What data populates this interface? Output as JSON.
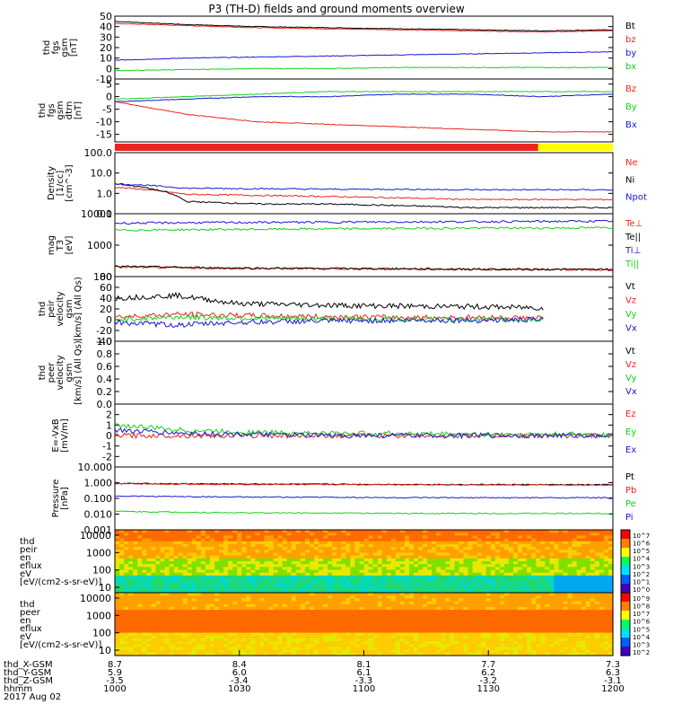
{
  "title": "P3 (TH-D) fields and ground moments overview",
  "colors": {
    "black": "#000000",
    "red": "#e8261e",
    "green": "#16d216",
    "blue": "#1818d8",
    "yellow": "#ffff00"
  },
  "colorbar_labels": {
    "ion": "[eV/(cm2-s-sr-eV)] (All Qs)",
    "electron": "[eV/(cm2-s-sr-eV)]"
  },
  "footer": {
    "rows": [
      {
        "label": "thd_X-GSM",
        "values": [
          "8.7",
          "8.4",
          "8.1",
          "7.7",
          "7.3"
        ]
      },
      {
        "label": "thd_Y-GSM",
        "values": [
          "5.9",
          "6.0",
          "6.1",
          "6.2",
          "6.3"
        ]
      },
      {
        "label": "thd_Z-GSM",
        "values": [
          "-3.5",
          "-3.4",
          "-3.3",
          "-3.2",
          "-3.1"
        ]
      },
      {
        "label": "hhmm",
        "values": [
          "1000",
          "1030",
          "1100",
          "1130",
          "1200"
        ]
      }
    ],
    "date": "2017 Aug 02"
  },
  "chart_data": [
    {
      "id": "fgs-gsm-mag",
      "type": "line",
      "ylabel": [
        "thd",
        "fgs",
        "gsm",
        "[nT]"
      ],
      "ylim": [
        -10,
        50
      ],
      "ticks": [
        "50",
        "40",
        "30",
        "20",
        "10",
        "0",
        "-10"
      ],
      "tick_values": [
        50,
        40,
        30,
        20,
        10,
        0,
        -10
      ],
      "x_time_range": [
        "10:00",
        "12:00"
      ],
      "series": [
        {
          "name": "Bt",
          "color": "black",
          "values": [
            45,
            42,
            40,
            39,
            38,
            37,
            36,
            37
          ]
        },
        {
          "name": "bz",
          "color": "red",
          "values": [
            43,
            41,
            39,
            38,
            37,
            36,
            35,
            36
          ]
        },
        {
          "name": "by",
          "color": "blue",
          "values": [
            8,
            10,
            11,
            12,
            13,
            14,
            15,
            16
          ]
        },
        {
          "name": "bx",
          "color": "green",
          "values": [
            -2,
            -1,
            0,
            0,
            1,
            1,
            1,
            1
          ]
        }
      ]
    },
    {
      "id": "fgs-gsm-detrended",
      "type": "line",
      "ylabel": [
        "thd",
        "fgs",
        "gsm",
        "dtrn",
        "[nT]"
      ],
      "ylim": [
        -18,
        7
      ],
      "ticks": [
        "5",
        "0",
        "-5",
        "-10",
        "-15"
      ],
      "tick_values": [
        5,
        0,
        -5,
        -10,
        -15
      ],
      "series": [
        {
          "name": "Bz",
          "color": "red",
          "values": [
            -2,
            -7,
            -10,
            -11,
            -12,
            -13,
            -14,
            -14
          ]
        },
        {
          "name": "By",
          "color": "green",
          "values": [
            -1,
            0,
            1,
            2,
            2,
            2,
            2,
            2
          ]
        },
        {
          "name": "Bx",
          "color": "blue",
          "values": [
            -2,
            -1,
            0,
            0,
            1,
            1,
            0,
            1
          ]
        }
      ]
    },
    {
      "id": "mode-bar",
      "type": "bar",
      "segments": [
        {
          "color": "red",
          "from": 0.0,
          "to": 0.85
        },
        {
          "color": "yellow",
          "from": 0.85,
          "to": 1.0
        }
      ]
    },
    {
      "id": "density",
      "type": "line",
      "scale": "log",
      "ylabel": [
        "Density",
        "[1/cc]",
        "[cm^-3]"
      ],
      "ylim": [
        0.1,
        100
      ],
      "ticks": [
        "100.0",
        "10.0",
        "1.0",
        "0.1"
      ],
      "tick_values": [
        100,
        10,
        1,
        0.1
      ],
      "series": [
        {
          "name": "Ne",
          "color": "red",
          "values": [
            2,
            0.9,
            0.8,
            0.7,
            0.6,
            0.5,
            0.5,
            0.5
          ]
        },
        {
          "name": "Ni",
          "color": "black",
          "values": [
            3,
            0.4,
            0.3,
            0.3,
            0.25,
            0.2,
            0.2,
            0.2
          ]
        },
        {
          "name": "Npot",
          "color": "blue",
          "values": [
            3,
            1.8,
            1.7,
            1.6,
            1.6,
            1.5,
            1.5,
            1.5
          ]
        }
      ]
    },
    {
      "id": "temperature",
      "type": "line",
      "scale": "log",
      "ylabel": [
        "mag",
        "T3",
        "[eV]"
      ],
      "ylim": [
        100,
        10000
      ],
      "ticks": [
        "10000",
        "1000",
        "100"
      ],
      "tick_values": [
        10000,
        1000,
        100
      ],
      "series": [
        {
          "name": "Te⊥",
          "color": "red",
          "values": [
            200,
            190,
            180,
            180,
            175,
            170,
            170,
            165
          ]
        },
        {
          "name": "Te||",
          "color": "black",
          "values": [
            210,
            195,
            185,
            180,
            178,
            172,
            170,
            168
          ]
        },
        {
          "name": "Ti⊥",
          "color": "blue",
          "values": [
            5000,
            5200,
            5300,
            5400,
            5500,
            5600,
            5700,
            5800
          ]
        },
        {
          "name": "Ti||",
          "color": "green",
          "values": [
            3000,
            3100,
            3200,
            3300,
            3400,
            3500,
            3500,
            3600
          ]
        }
      ]
    },
    {
      "id": "peir-velocity",
      "type": "line",
      "ylabel": [
        "thd",
        "peir",
        "velocity",
        "gsm",
        "[km/s] (All Qs)"
      ],
      "ylim": [
        -40,
        80
      ],
      "ticks": [
        "80",
        "60",
        "40",
        "20",
        "0",
        "-20",
        "-40"
      ],
      "tick_values": [
        80,
        60,
        40,
        20,
        0,
        -20,
        -40
      ],
      "series": [
        {
          "name": "Vt",
          "color": "black",
          "values": [
            40,
            45,
            30,
            28,
            26,
            25,
            24,
            22
          ]
        },
        {
          "name": "Vz",
          "color": "red",
          "values": [
            5,
            10,
            8,
            6,
            5,
            4,
            4,
            3
          ]
        },
        {
          "name": "Vy",
          "color": "green",
          "values": [
            0,
            5,
            3,
            2,
            1,
            1,
            0,
            0
          ]
        },
        {
          "name": "Vx",
          "color": "blue",
          "values": [
            -5,
            -10,
            -5,
            -3,
            -2,
            -1,
            -1,
            0
          ]
        }
      ]
    },
    {
      "id": "peer-velocity",
      "type": "line",
      "ylabel": [
        "thd",
        "peer",
        "velocity",
        "gsm",
        "[km/s] (All Qs)"
      ],
      "ylim": [
        0,
        1
      ],
      "ticks": [
        "1.0",
        "0.8",
        "0.6",
        "0.4",
        "0.2",
        "0.0"
      ],
      "tick_values": [
        1,
        0.8,
        0.6,
        0.4,
        0.2,
        0
      ],
      "series": [
        {
          "name": "Vt",
          "color": "black",
          "values": []
        },
        {
          "name": "Vz",
          "color": "red",
          "values": []
        },
        {
          "name": "Vy",
          "color": "green",
          "values": []
        },
        {
          "name": "Vx",
          "color": "blue",
          "values": []
        }
      ]
    },
    {
      "id": "efield",
      "type": "line",
      "ylabel": [
        "E=-VxB",
        "[mV/m]"
      ],
      "ylim": [
        -3,
        3
      ],
      "ticks": [
        "2",
        "1",
        "0",
        "-1",
        "-2"
      ],
      "tick_values": [
        2,
        1,
        0,
        -1,
        -2
      ],
      "series": [
        {
          "name": "Ez",
          "color": "red",
          "values": [
            0,
            0,
            0,
            0,
            0,
            0,
            0,
            0
          ]
        },
        {
          "name": "Ey",
          "color": "green",
          "values": [
            1,
            0.5,
            0.3,
            0.2,
            0.2,
            0.1,
            0.1,
            0.1
          ]
        },
        {
          "name": "Ex",
          "color": "blue",
          "values": [
            0.5,
            0.2,
            0.1,
            0,
            0,
            0,
            0,
            0
          ]
        }
      ]
    },
    {
      "id": "pressure",
      "type": "line",
      "scale": "log",
      "ylabel": [
        "Pressure",
        "[nPa]"
      ],
      "ylim": [
        0.001,
        10
      ],
      "ticks": [
        "10.000",
        "1.000",
        "0.100",
        "0.010",
        "0.001"
      ],
      "tick_values": [
        10,
        1,
        0.1,
        0.01,
        0.001
      ],
      "series": [
        {
          "name": "Pt",
          "color": "black",
          "values": [
            0.9,
            0.85,
            0.82,
            0.8,
            0.78,
            0.76,
            0.75,
            0.74
          ]
        },
        {
          "name": "Pb",
          "color": "red",
          "values": [
            0.85,
            0.8,
            0.78,
            0.76,
            0.74,
            0.72,
            0.71,
            0.7
          ]
        },
        {
          "name": "Pe",
          "color": "green",
          "values": [
            0.015,
            0.013,
            0.012,
            0.012,
            0.011,
            0.011,
            0.011,
            0.011
          ]
        },
        {
          "name": "Pi",
          "color": "blue",
          "values": [
            0.14,
            0.13,
            0.12,
            0.12,
            0.11,
            0.11,
            0.11,
            0.11
          ]
        }
      ]
    },
    {
      "id": "peir-spectrogram",
      "type": "heatmap",
      "ylabel": [
        "thd",
        "peir",
        "en",
        "eflux",
        "eV",
        "[eV/(cm2-s-sr-eV)]"
      ],
      "ticks": [
        "10000",
        "1000",
        "100",
        "10"
      ],
      "tick_values": [
        10000,
        1000,
        100,
        10
      ],
      "colorbar_ticks": [
        "10^7",
        "10^6",
        "10^5",
        "10^4",
        "10^3",
        "10^2",
        "10^1",
        "10^0"
      ]
    },
    {
      "id": "peer-spectrogram",
      "type": "heatmap",
      "ylabel": [
        "thd",
        "peer",
        "en",
        "eflux",
        "eV",
        "[eV/(cm2-s-sr-eV)]"
      ],
      "ticks": [
        "10000",
        "1000",
        "100",
        "10"
      ],
      "tick_values": [
        10000,
        1000,
        100,
        10
      ],
      "colorbar_ticks": [
        "10^9",
        "10^8",
        "10^7",
        "10^6",
        "10^5",
        "10^4",
        "10^3",
        "10^2"
      ]
    }
  ]
}
